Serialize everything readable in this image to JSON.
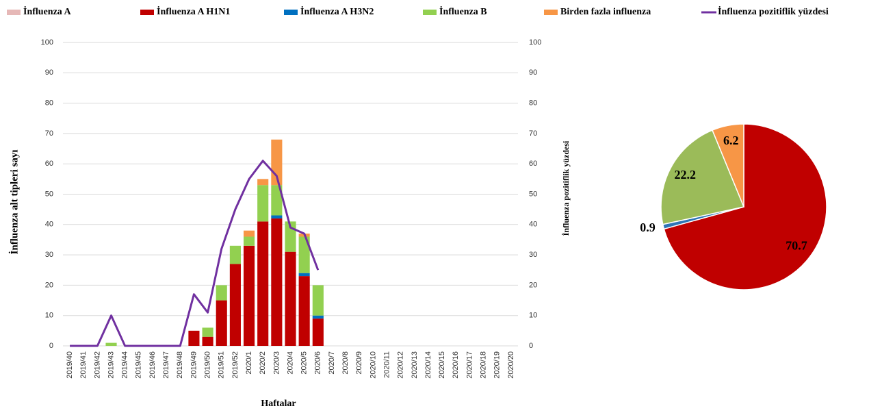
{
  "chart_data": [
    {
      "type": "bar",
      "y_label": "İnfluenza alt tipleri sayı",
      "y2_label": "İnfluenza pozitiflik yüzdesi",
      "x_label": "Haftalar",
      "categories": [
        "2019/40",
        "2019/41",
        "2019/42",
        "2019/43",
        "2019/44",
        "2019/45",
        "2019/46",
        "2019/47",
        "2019/48",
        "2019/49",
        "2019/50",
        "2019/51",
        "2019/52",
        "2020/1",
        "2020/2",
        "2020/3",
        "2020/4",
        "2020/5",
        "2020/6",
        "2020/7",
        "2020/8",
        "2020/9",
        "2020/10",
        "2020/11",
        "2020/12",
        "2020/13",
        "2020/14",
        "2020/15",
        "2020/16",
        "2020/17",
        "2020/18",
        "2020/19",
        "2020/20"
      ],
      "series": [
        {
          "name": "İnfluenza A",
          "color": "#e6b8b7",
          "values": [
            0,
            0,
            0,
            0,
            0,
            0,
            0,
            0,
            0,
            0,
            0,
            0,
            0,
            0,
            0,
            0,
            0,
            0,
            0,
            null,
            null,
            null,
            null,
            null,
            null,
            null,
            null,
            null,
            null,
            null,
            null,
            null,
            null
          ]
        },
        {
          "name": "İnfluenza A H1N1",
          "color": "#c00000",
          "values": [
            0,
            0,
            0,
            0,
            0,
            0,
            0,
            0,
            0,
            5,
            3,
            15,
            27,
            33,
            41,
            42,
            31,
            23,
            9,
            null,
            null,
            null,
            null,
            null,
            null,
            null,
            null,
            null,
            null,
            null,
            null,
            null,
            null
          ]
        },
        {
          "name": "İnfluenza A H3N2",
          "color": "#0070c0",
          "values": [
            0,
            0,
            0,
            0,
            0,
            0,
            0,
            0,
            0,
            0,
            0,
            0,
            0,
            0,
            0,
            1,
            0,
            1,
            1,
            null,
            null,
            null,
            null,
            null,
            null,
            null,
            null,
            null,
            null,
            null,
            null,
            null,
            null
          ]
        },
        {
          "name": "İnfluenza B",
          "color": "#92d050",
          "values": [
            0,
            0,
            0,
            1,
            0,
            0,
            0,
            0,
            0,
            0,
            3,
            5,
            6,
            3,
            12,
            10,
            10,
            12,
            10,
            null,
            null,
            null,
            null,
            null,
            null,
            null,
            null,
            null,
            null,
            null,
            null,
            null,
            null
          ]
        },
        {
          "name": "Birden fazla influenza",
          "color": "#f79646",
          "values": [
            0,
            0,
            0,
            0,
            0,
            0,
            0,
            0,
            0,
            0,
            0,
            0,
            0,
            2,
            2,
            15,
            0,
            1,
            0,
            null,
            null,
            null,
            null,
            null,
            null,
            null,
            null,
            null,
            null,
            null,
            null,
            null,
            null
          ]
        },
        {
          "name": "İnfluenza pozitiflik yüzdesi",
          "color": "#7030a0",
          "type": "line",
          "axis": "y2",
          "values": [
            0,
            0,
            0,
            10,
            0,
            0,
            0,
            0,
            0,
            17,
            11,
            32,
            45,
            55,
            61,
            56,
            39,
            37,
            25,
            null,
            null,
            null,
            null,
            null,
            null,
            null,
            null,
            null,
            null,
            null,
            null,
            null,
            null
          ]
        }
      ],
      "ylim": [
        0,
        100
      ],
      "yticks": [
        0,
        10,
        20,
        30,
        40,
        50,
        60,
        70,
        80,
        90,
        100
      ],
      "y2lim": [
        0,
        100
      ],
      "y2ticks": [
        0,
        10,
        20,
        30,
        40,
        50,
        60,
        70,
        80,
        90,
        100
      ],
      "grid": true,
      "legend": "top"
    },
    {
      "type": "pie",
      "values": [
        70.7,
        0.9,
        22.2,
        6.2
      ],
      "colors": [
        "#c00000",
        "#2e75b6",
        "#9bbb59",
        "#f79646"
      ]
    }
  ]
}
